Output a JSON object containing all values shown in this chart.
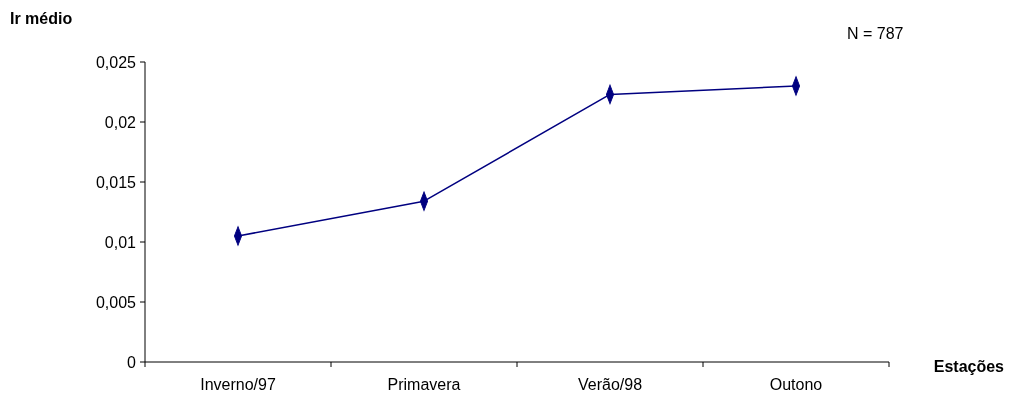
{
  "chart_data": {
    "type": "line",
    "xlabel": "Estações",
    "ylabel": "Ir médio",
    "annotations": [
      "N = 787"
    ],
    "categories": [
      "Inverno/97",
      "Primavera",
      "Verão/98",
      "Outono"
    ],
    "series": [
      {
        "color": "#000080",
        "values": [
          0.0105,
          0.0134,
          0.0223,
          0.023
        ]
      }
    ],
    "ylim": [
      0,
      0.025
    ],
    "yticks": [
      {
        "value": 0,
        "label": "0"
      },
      {
        "value": 0.005,
        "label": "0,005"
      },
      {
        "value": 0.01,
        "label": "0,01"
      },
      {
        "value": 0.015,
        "label": "0,015"
      },
      {
        "value": 0.02,
        "label": "0,02"
      },
      {
        "value": 0.025,
        "label": "0,025"
      }
    ],
    "grid": false,
    "marker": "diamond",
    "line_style": "solid"
  }
}
